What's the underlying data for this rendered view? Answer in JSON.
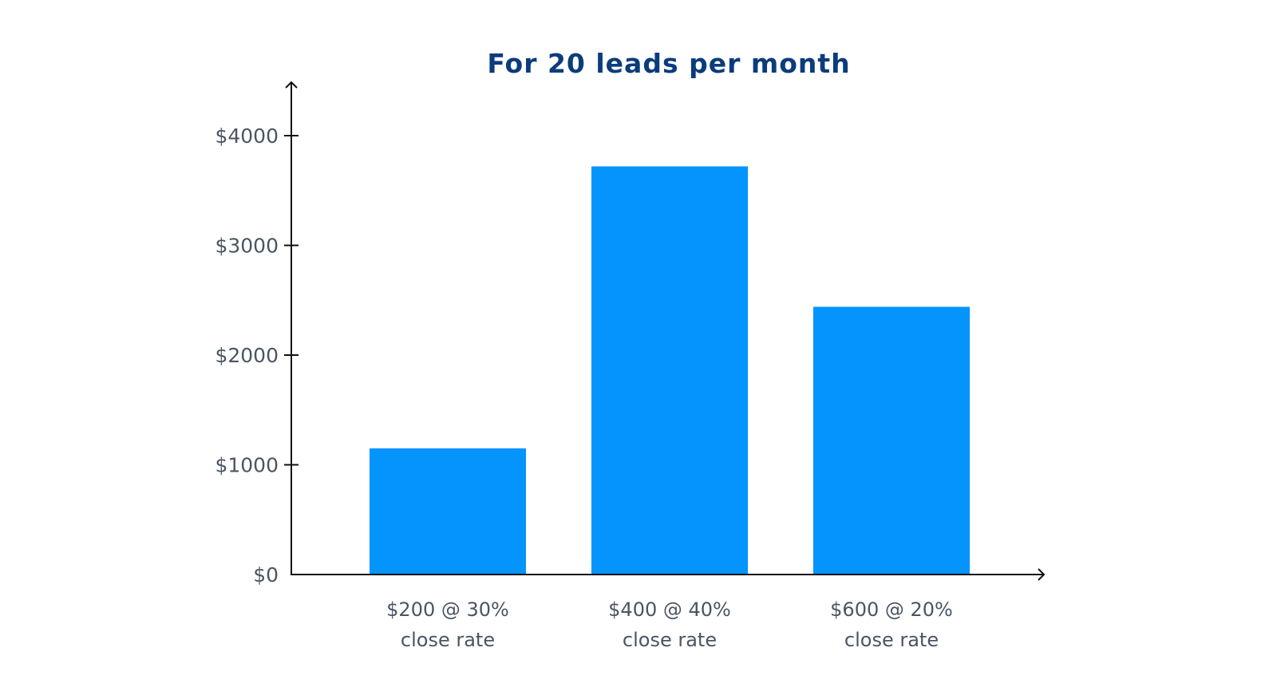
{
  "chart_data": {
    "type": "bar",
    "title": "For 20 leads per month",
    "xlabel": "",
    "ylabel": "",
    "categories": [
      [
        "$200 @ 30%",
        "close rate"
      ],
      [
        "$400 @ 40%",
        "close rate"
      ],
      [
        "$600 @ 20%",
        "close rate"
      ]
    ],
    "values": [
      1150,
      3720,
      2440
    ],
    "y_ticks": [
      0,
      1000,
      2000,
      3000,
      4000
    ],
    "y_tick_labels": [
      "$0",
      "$1000",
      "$2000",
      "$3000",
      "$4000"
    ],
    "ylim": [
      0,
      4400
    ],
    "grid": false,
    "legend": "none"
  },
  "colors": {
    "bar": "#0494fc",
    "title": "#0b3c7c",
    "axis": "#111111",
    "tick_text": "#4a5563"
  }
}
